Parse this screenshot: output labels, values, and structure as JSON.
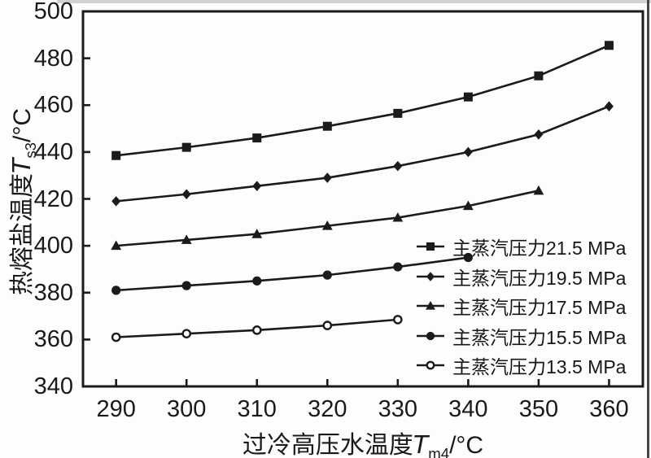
{
  "chart_data": {
    "type": "line",
    "title": "",
    "xlabel": {
      "prefix": "过冷高压水温度",
      "symbol": "T",
      "subscript": "m4",
      "suffix": "/°C"
    },
    "ylabel": {
      "prefix": "热熔盐温度",
      "symbol": "T",
      "subscript": "s3",
      "suffix": "/°C"
    },
    "xlim": [
      285.3,
      364.8
    ],
    "ylim": [
      340,
      500
    ],
    "xticks": [
      290,
      300,
      310,
      320,
      330,
      340,
      350,
      360
    ],
    "yticks": [
      340,
      360,
      380,
      400,
      420,
      440,
      460,
      480,
      500
    ],
    "grid": false,
    "legend_position": "lower right",
    "line_color": "#1b1b1b",
    "series": [
      {
        "name": "主蒸汽压力21.5 MPa",
        "marker": "square",
        "x": [
          290,
          300,
          310,
          320,
          330,
          340,
          350,
          360
        ],
        "y": [
          438.5,
          442,
          446,
          451,
          456.5,
          463.5,
          472.5,
          485.5
        ]
      },
      {
        "name": "主蒸汽压力19.5 MPa",
        "marker": "diamond",
        "x": [
          290,
          300,
          310,
          320,
          330,
          340,
          350,
          360
        ],
        "y": [
          419,
          422,
          425.5,
          429,
          434,
          440,
          447.5,
          459.5
        ]
      },
      {
        "name": "主蒸汽压力17.5 MPa",
        "marker": "triangle",
        "x": [
          290,
          300,
          310,
          320,
          330,
          340,
          350
        ],
        "y": [
          400,
          402.5,
          405,
          408.5,
          412,
          417,
          423.5
        ]
      },
      {
        "name": "主蒸汽压力15.5 MPa",
        "marker": "circle",
        "x": [
          290,
          300,
          310,
          320,
          330,
          340
        ],
        "y": [
          381,
          383,
          385,
          387.5,
          391,
          395
        ]
      },
      {
        "name": "主蒸汽压力13.5 MPa",
        "marker": "circle-open",
        "x": [
          290,
          300,
          310,
          320,
          330
        ],
        "y": [
          361,
          362.5,
          364,
          366,
          368.5
        ]
      }
    ]
  }
}
